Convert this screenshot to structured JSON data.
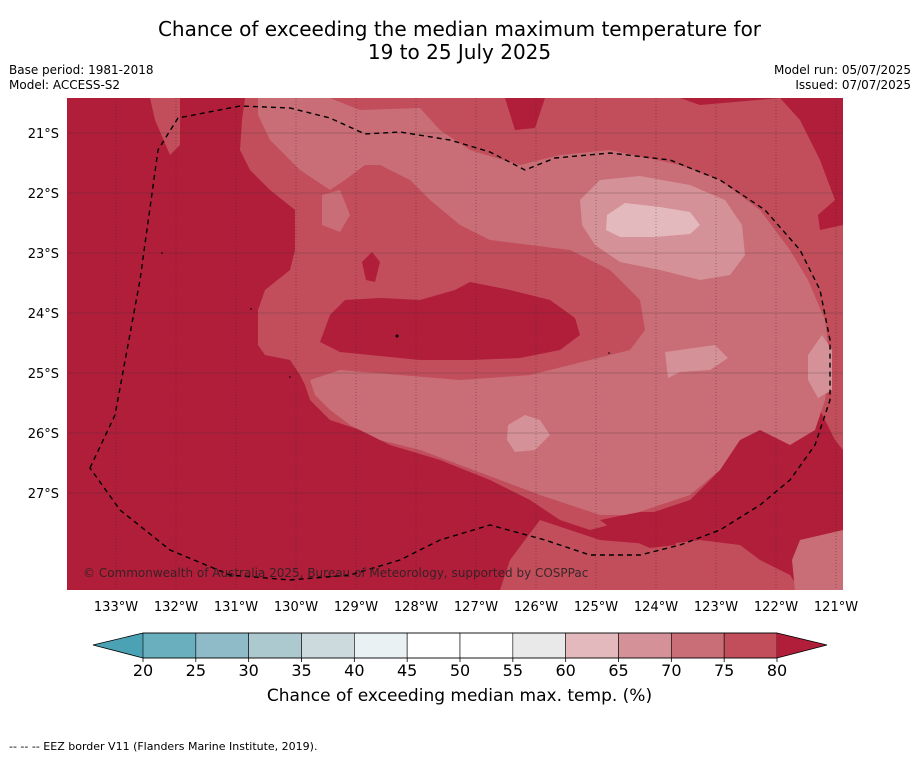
{
  "header": {
    "title_line1": "Chance of exceeding the median maximum temperature for",
    "title_line2": "19 to 25 July 2025",
    "base_period": "Base period: 1981-2018",
    "model": "Model: ACCESS-S2",
    "model_run": "Model run: 05/07/2025",
    "issued": "Issued: 07/07/2025"
  },
  "map": {
    "lat_labels": [
      "21°S",
      "22°S",
      "23°S",
      "24°S",
      "25°S",
      "26°S",
      "27°S"
    ],
    "lon_labels": [
      "133°W",
      "132°W",
      "131°W",
      "130°W",
      "129°W",
      "128°W",
      "127°W",
      "126°W",
      "125°W",
      "124°W",
      "123°W",
      "122°W",
      "121°W"
    ],
    "copyright": "© Commonwealth of Australia 2025, Bureau of Meteorology, supported by COSPPac"
  },
  "colorbar": {
    "ticks": [
      "20",
      "25",
      "30",
      "35",
      "40",
      "45",
      "50",
      "55",
      "60",
      "65",
      "70",
      "75",
      "80"
    ],
    "colors": {
      "below": "#4aa2b4",
      "bins": [
        "#6aafbe",
        "#8ebbc7",
        "#abc9cf",
        "#ccdade",
        "#eaf1f3",
        "#ffffff",
        "#ffffff",
        "#e9e9e9",
        "#e3b9be",
        "#d59198",
        "#c96d76",
        "#c24d5b"
      ],
      "above": "#b11e3a"
    },
    "label": "Chance of exceeding median max. temp. (%)"
  },
  "footer": {
    "text": "--  --  -- EEZ border V11 (Flanders Marine Institute, 2019)."
  }
}
